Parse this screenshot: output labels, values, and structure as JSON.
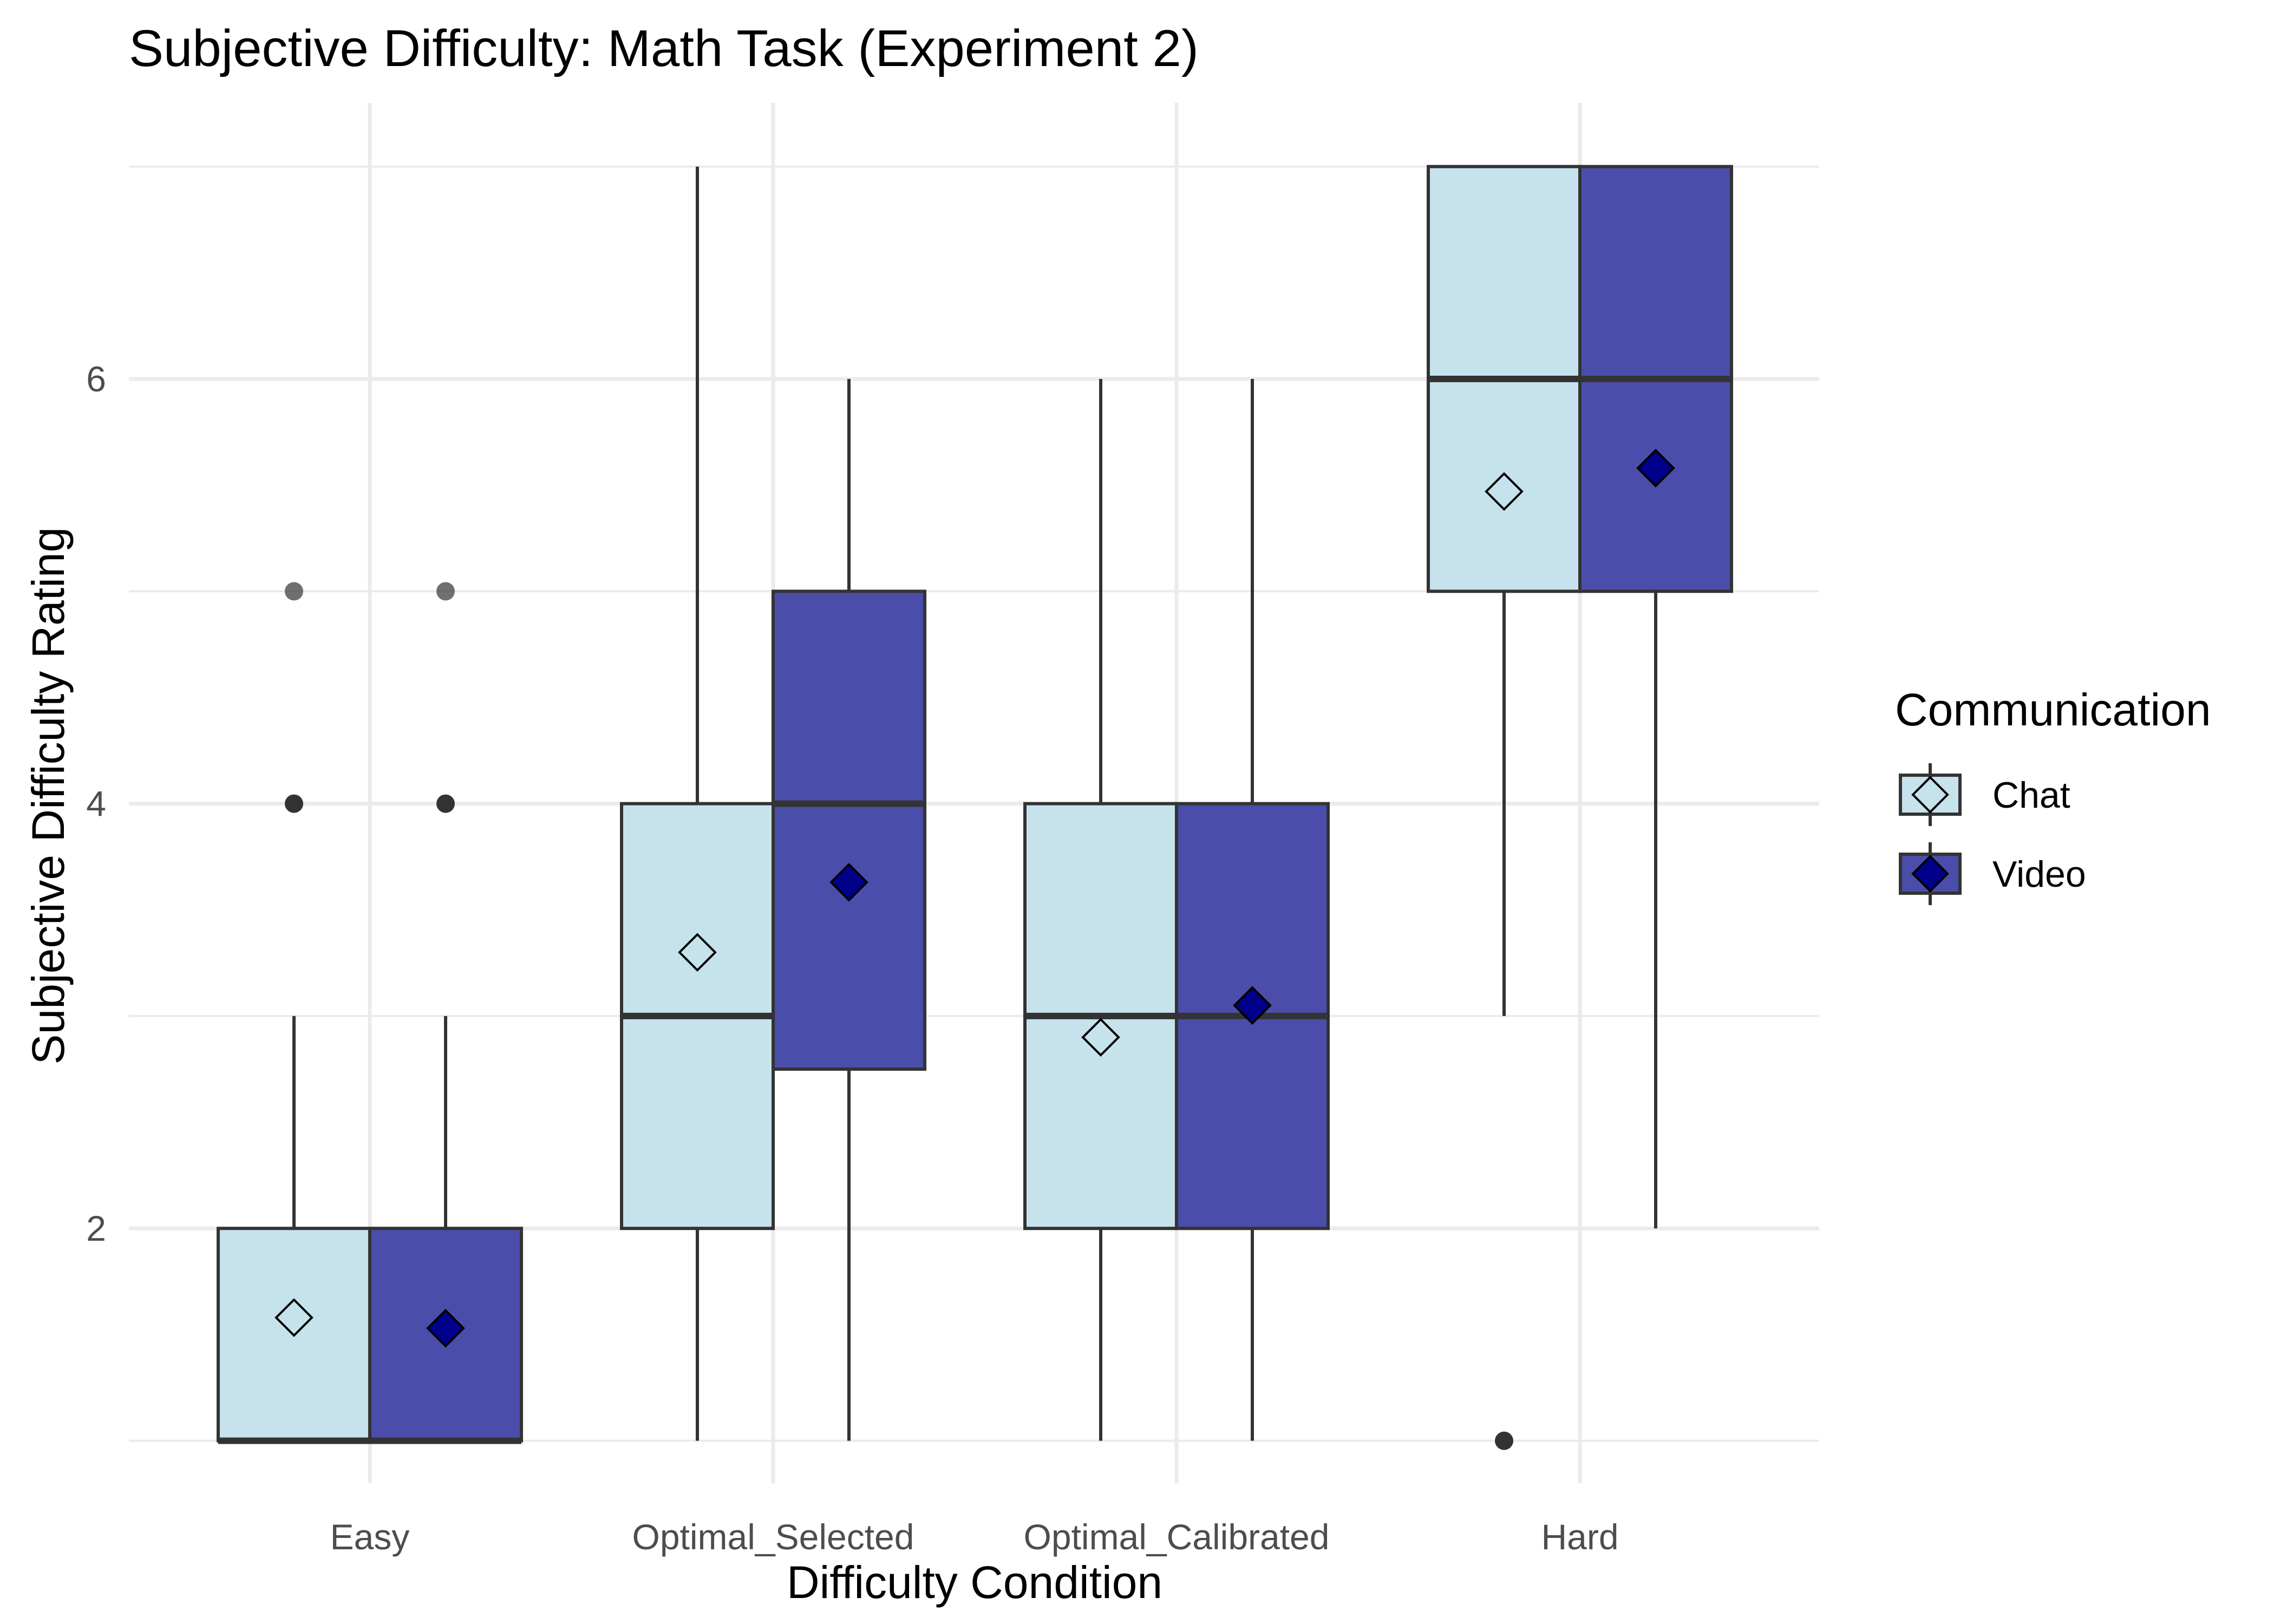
{
  "chart_data": {
    "type": "boxplot",
    "title": "Subjective Difficulty: Math Task (Experiment 2)",
    "xlabel": "Difficulty Condition",
    "ylabel": "Subjective Difficulty Rating",
    "ylim": [
      0.8,
      7.3
    ],
    "yticks": [
      2,
      4,
      6
    ],
    "grid": true,
    "legend": {
      "title": "Communication",
      "position": "right",
      "entries": [
        "Chat",
        "Video"
      ]
    },
    "categories": [
      "Easy",
      "Optimal_Selected",
      "Optimal_Calibrated",
      "Hard"
    ],
    "mean_marker": "diamond",
    "series": [
      {
        "name": "Chat",
        "fill": "#c6e3ed",
        "mean_fill": "#c6e3ed",
        "boxes": [
          {
            "category": "Easy",
            "whisker_low": 1,
            "q1": 1,
            "median": 1,
            "q3": 2,
            "whisker_high": 3,
            "mean": 1.58,
            "outliers": [
              4,
              5
            ]
          },
          {
            "category": "Optimal_Selected",
            "whisker_low": 1,
            "q1": 2,
            "median": 3,
            "q3": 4,
            "whisker_high": 7,
            "mean": 3.3,
            "outliers": []
          },
          {
            "category": "Optimal_Calibrated",
            "whisker_low": 1,
            "q1": 2,
            "median": 3,
            "q3": 4,
            "whisker_high": 6,
            "mean": 2.9,
            "outliers": []
          },
          {
            "category": "Hard",
            "whisker_low": 3,
            "q1": 5,
            "median": 6,
            "q3": 7,
            "whisker_high": 7,
            "mean": 5.47,
            "outliers": [
              1
            ]
          }
        ]
      },
      {
        "name": "Video",
        "fill": "#4b4dab",
        "mean_fill": "#00008b",
        "boxes": [
          {
            "category": "Easy",
            "whisker_low": 1,
            "q1": 1,
            "median": 1,
            "q3": 2,
            "whisker_high": 3,
            "mean": 1.53,
            "outliers": [
              4,
              5
            ]
          },
          {
            "category": "Optimal_Selected",
            "whisker_low": 1,
            "q1": 2.75,
            "median": 4,
            "q3": 5,
            "whisker_high": 6,
            "mean": 3.63,
            "outliers": []
          },
          {
            "category": "Optimal_Calibrated",
            "whisker_low": 1,
            "q1": 2,
            "median": 3,
            "q3": 4,
            "whisker_high": 6,
            "mean": 3.05,
            "outliers": []
          },
          {
            "category": "Hard",
            "whisker_low": 2,
            "q1": 5,
            "median": 6,
            "q3": 7,
            "whisker_high": 7,
            "mean": 5.58,
            "outliers": []
          }
        ]
      }
    ]
  }
}
